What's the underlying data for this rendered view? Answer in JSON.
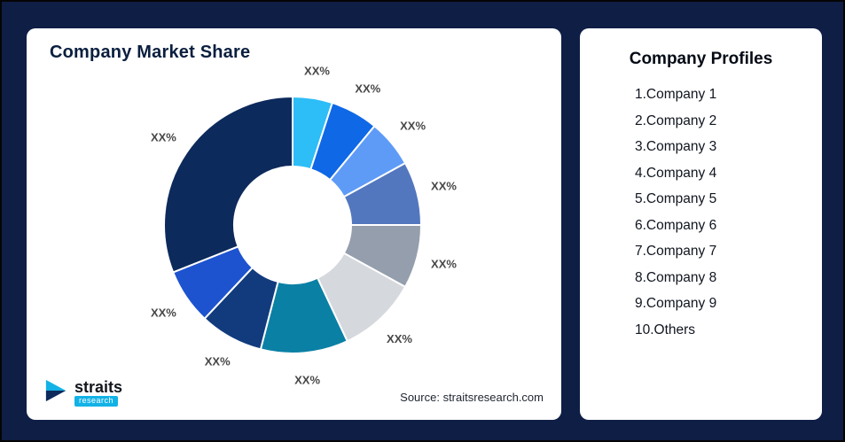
{
  "page": {
    "background": "#0F1E45",
    "border_color": "#050505"
  },
  "chart_card": {
    "title": "Company Market Share",
    "source": "Source: straitsresearch.com"
  },
  "logo": {
    "name": "straits",
    "sub": "research"
  },
  "profiles_card": {
    "title": "Company Profiles",
    "items": [
      "1.Company 1",
      "2.Company 2",
      "3.Company 3",
      "4.Company 4",
      "5.Company 5",
      "6.Company 6",
      "7.Company 7",
      "8.Company 8",
      "9.Company 9",
      "10.Others"
    ]
  },
  "chart_data": {
    "type": "pie",
    "subtype": "donut",
    "title": "Company Market Share",
    "start_angle_deg": 0,
    "direction": "clockwise",
    "inner_radius_ratio": 0.455,
    "legend": "none",
    "categories": [
      "Company 1",
      "Company 2",
      "Company 3",
      "Company 4",
      "Company 5",
      "Company 6",
      "Company 7",
      "Company 8",
      "Company 9",
      "Others"
    ],
    "values": [
      5,
      6,
      6,
      8,
      8,
      10,
      11,
      8,
      7,
      31
    ],
    "values_estimated": true,
    "labels": [
      "XX%",
      "XX%",
      "XX%",
      "XX%",
      "XX%",
      "XX%",
      "XX%",
      "XX%",
      "XX%",
      "XX%"
    ],
    "colors": [
      "#2DBDF7",
      "#0F68E6",
      "#5E9BF7",
      "#5377BE",
      "#949EAC",
      "#D5D8DD",
      "#0B80A5",
      "#123B7E",
      "#1D53CF",
      "#0D2A5C"
    ]
  }
}
